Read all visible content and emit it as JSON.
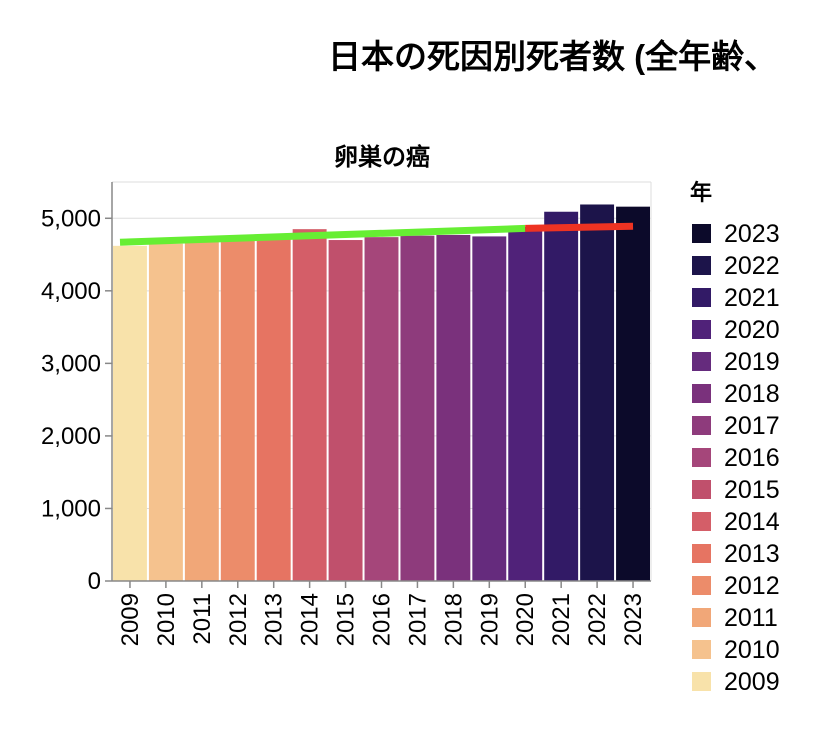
{
  "title": "日本の死因別死者数 (全年齢、",
  "chart_data": {
    "type": "bar",
    "title": "卵巣の癌",
    "xlabel": "",
    "ylabel": "",
    "categories": [
      "2009",
      "2010",
      "2011",
      "2012",
      "2013",
      "2014",
      "2015",
      "2016",
      "2017",
      "2018",
      "2019",
      "2020",
      "2021",
      "2022",
      "2023"
    ],
    "values": [
      4620,
      4650,
      4680,
      4700,
      4720,
      4850,
      4700,
      4740,
      4760,
      4770,
      4750,
      4880,
      5090,
      5190,
      5160
    ],
    "ylim": [
      0,
      5500
    ],
    "yticks": [
      0,
      1000,
      2000,
      3000,
      4000,
      5000
    ],
    "ytick_labels": [
      "0",
      "1,000",
      "2,000",
      "3,000",
      "4,000",
      "5,000"
    ],
    "grid": true,
    "colors": [
      "#f8e2aa",
      "#f5c28e",
      "#f1a778",
      "#ec8c6a",
      "#e67462",
      "#d45e68",
      "#c0506c",
      "#a5467a",
      "#8e3b7c",
      "#7a317c",
      "#652b7d",
      "#502279",
      "#321a66",
      "#1c144a",
      "#0c0a2a"
    ],
    "legend": {
      "title": "年",
      "placement": "right",
      "entries": [
        "2023",
        "2022",
        "2021",
        "2020",
        "2019",
        "2018",
        "2017",
        "2016",
        "2015",
        "2014",
        "2013",
        "2012",
        "2011",
        "2010",
        "2009"
      ]
    },
    "trend_lines": [
      {
        "color": "#66ee33",
        "x_start": "2009",
        "x_end": "2020",
        "y_start": 4670,
        "y_end": 4860
      },
      {
        "color": "#ee3322",
        "x_start": "2020",
        "x_end": "2023",
        "y_start": 4860,
        "y_end": 4890
      }
    ]
  }
}
